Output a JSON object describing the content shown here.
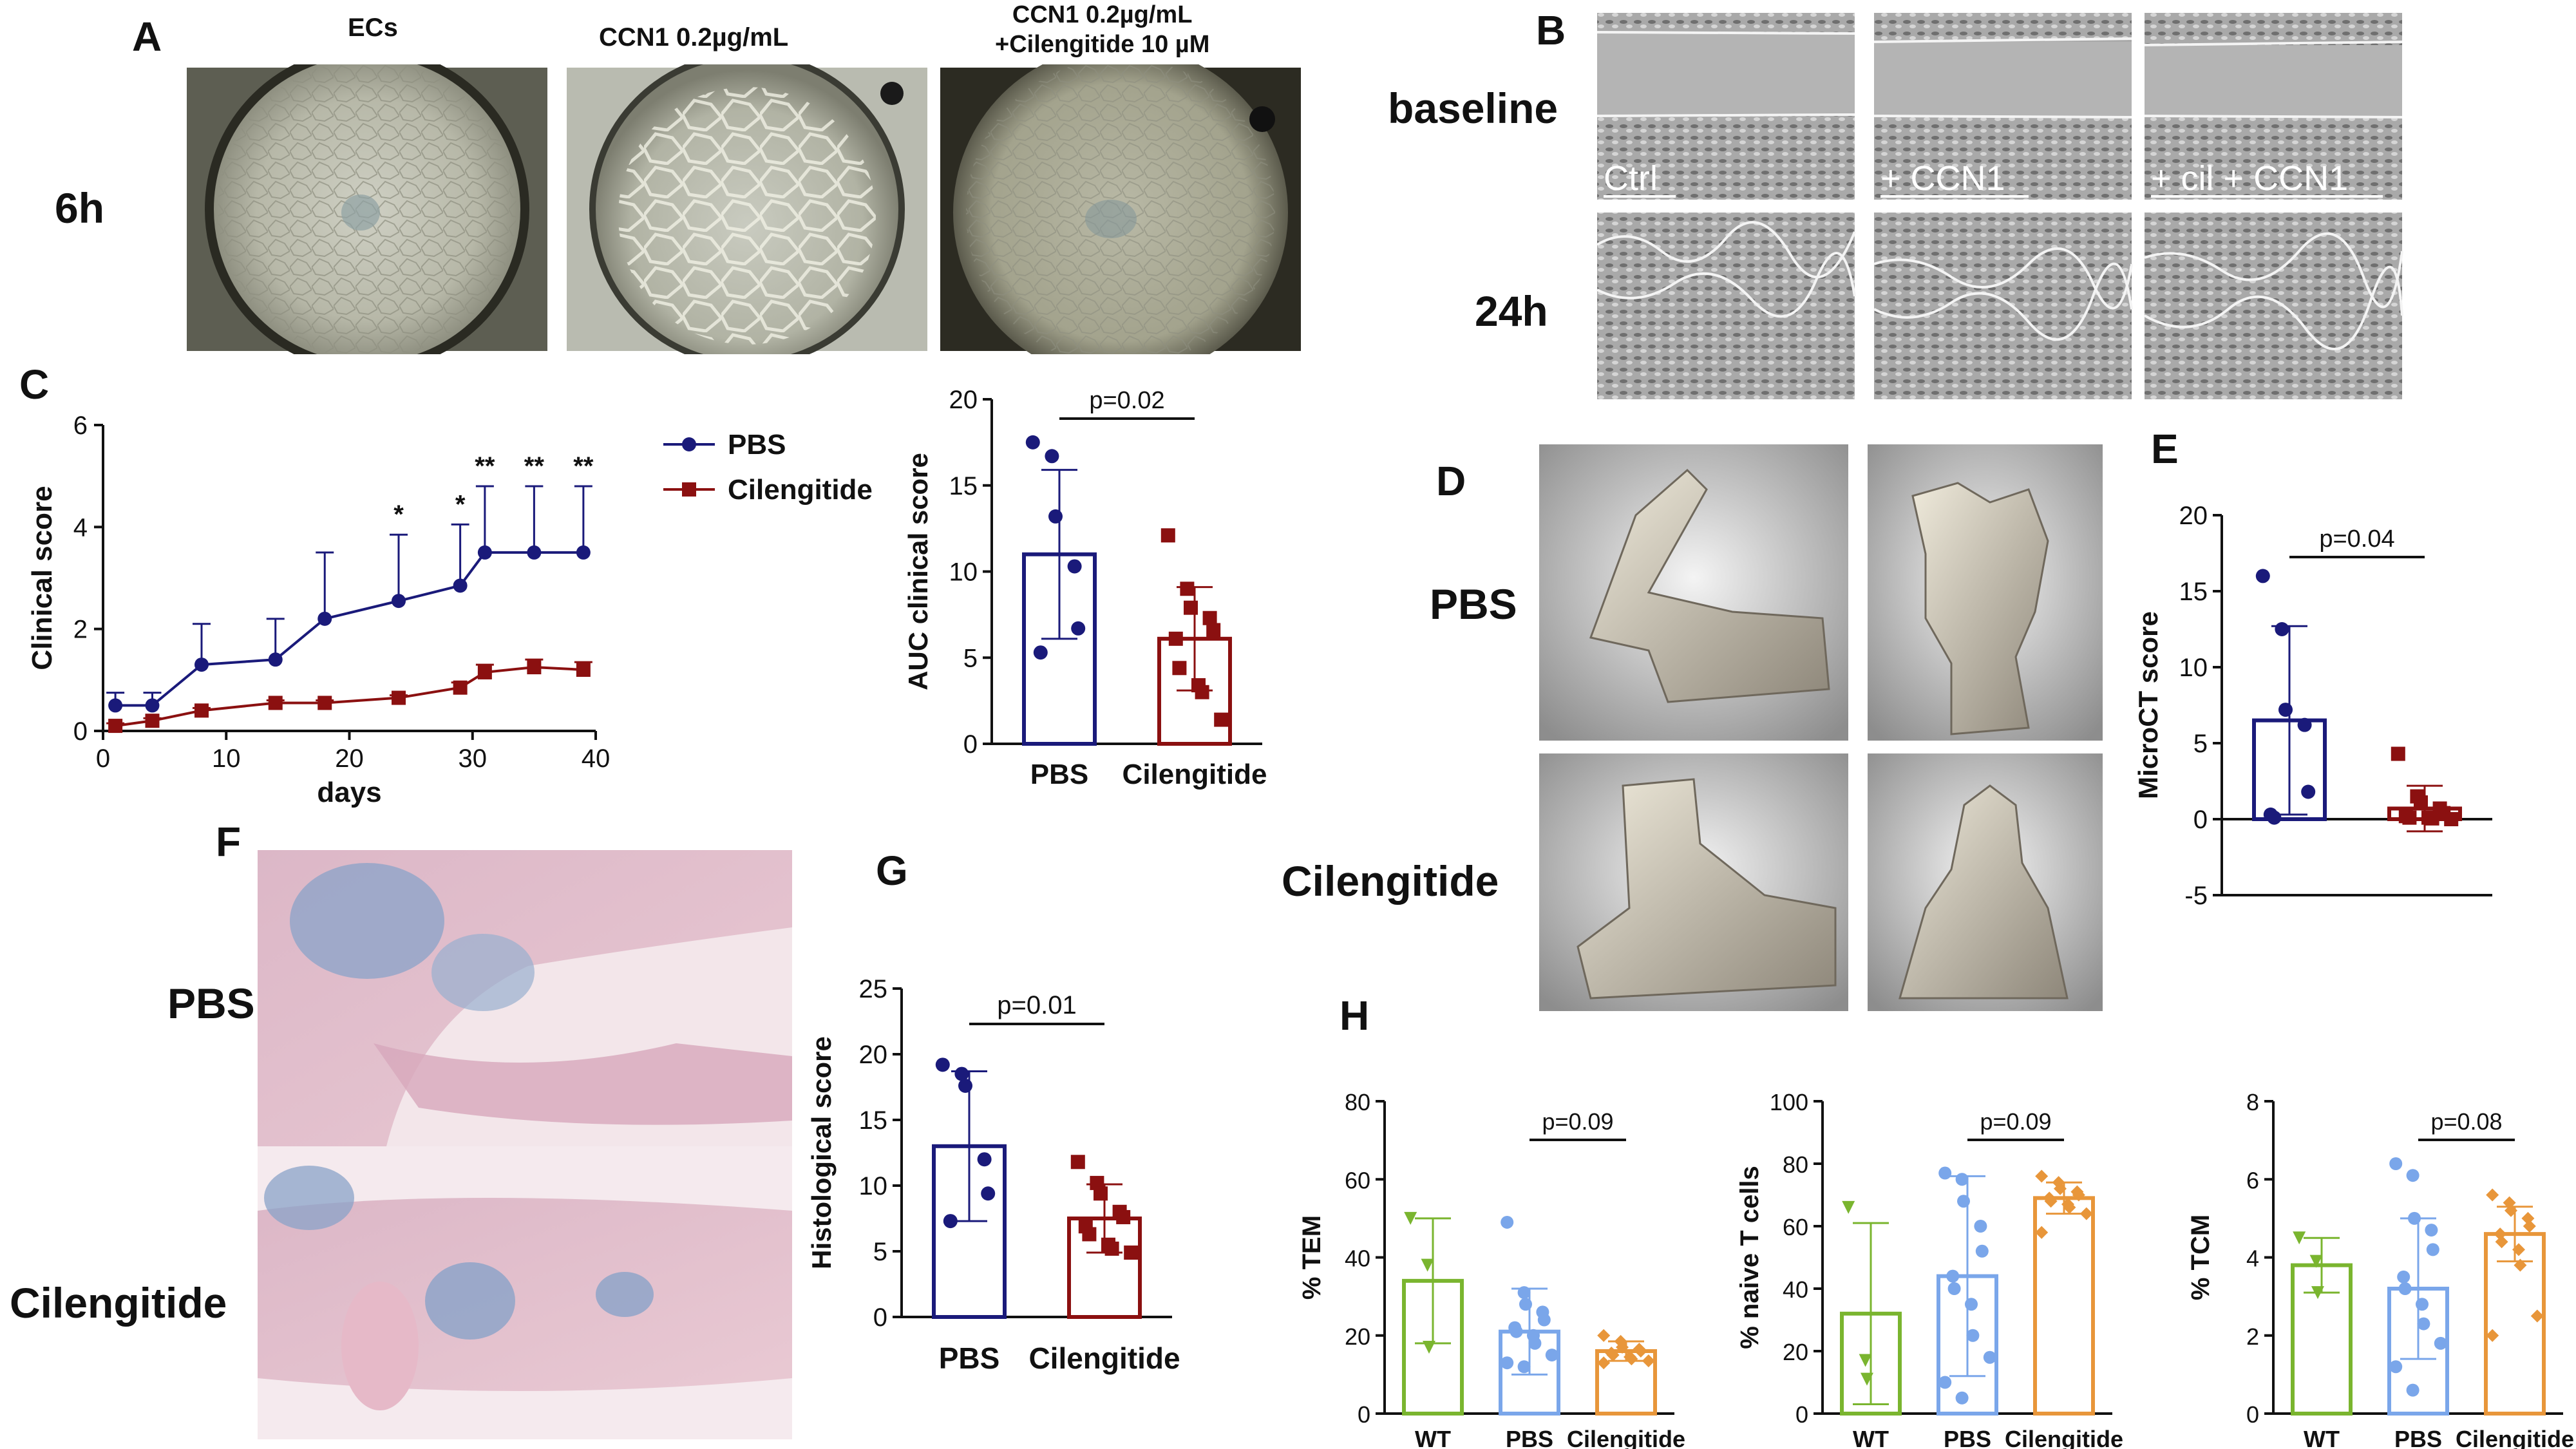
{
  "figure": {
    "panel_labels": {
      "A": "A",
      "B": "B",
      "C": "C",
      "D": "D",
      "E": "E",
      "F": "F",
      "G": "G",
      "H": "H"
    },
    "panel_a": {
      "col_titles": [
        "ECs",
        "CCN1 0.2µg/mL",
        "CCN1 0.2µg/mL\n+Cilengitide 10 µM"
      ],
      "row_label": "6h"
    },
    "panel_b": {
      "row_labels": [
        "baseline",
        "24h"
      ],
      "image_labels": [
        "Ctrl",
        "+ CCN1",
        "+ cil + CCN1"
      ]
    },
    "panel_d": {
      "row_labels": [
        "PBS",
        "Cilengitide"
      ]
    },
    "panel_f": {
      "row_labels": [
        "PBS",
        "Cilengitide"
      ]
    }
  },
  "chart_data": [
    {
      "id": "C-line",
      "type": "line",
      "xlabel": "days",
      "ylabel": "Clinical score",
      "xlim": [
        0,
        40
      ],
      "ylim": [
        0,
        6
      ],
      "xticks": [
        "0",
        "10",
        "20",
        "30",
        "40"
      ],
      "yticks": [
        "0",
        "2",
        "4",
        "6"
      ],
      "legend": [
        "PBS",
        "Cilengitide"
      ],
      "legend_position": "right",
      "series": [
        {
          "name": "PBS",
          "color": "#1a1a7a",
          "x": [
            1,
            4,
            8,
            14,
            18,
            24,
            29,
            31,
            35,
            39
          ],
          "y": [
            0.5,
            0.5,
            1.3,
            1.4,
            2.2,
            2.55,
            2.85,
            3.5,
            3.5,
            3.5
          ],
          "err": [
            0.25,
            0.25,
            0.8,
            0.8,
            1.3,
            1.3,
            1.2,
            1.3,
            1.3,
            1.3
          ]
        },
        {
          "name": "Cilengitide",
          "color": "#8b1010",
          "x": [
            1,
            4,
            8,
            14,
            18,
            24,
            29,
            31,
            35,
            39
          ],
          "y": [
            0.1,
            0.2,
            0.4,
            0.55,
            0.55,
            0.65,
            0.85,
            1.15,
            1.25,
            1.2
          ],
          "err": [
            0.05,
            0.05,
            0.05,
            0.05,
            0.05,
            0.05,
            0.1,
            0.15,
            0.15,
            0.15
          ]
        }
      ],
      "annotations": [
        {
          "x": 24,
          "text": "*"
        },
        {
          "x": 29,
          "text": "*"
        },
        {
          "x": 31,
          "text": "**"
        },
        {
          "x": 35,
          "text": "**"
        },
        {
          "x": 39,
          "text": "**"
        }
      ]
    },
    {
      "id": "C-bar",
      "type": "bar",
      "ylabel": "AUC clinical score",
      "ylim": [
        0,
        20
      ],
      "yticks": [
        "0",
        "5",
        "10",
        "15",
        "20"
      ],
      "categories": [
        "PBS",
        "Cilengitide"
      ],
      "colors": [
        "#1a1a7a",
        "#8b1010"
      ],
      "values": [
        11,
        6.1
      ],
      "err": [
        4.9,
        3.0
      ],
      "points": [
        [
          17.5,
          16.7,
          13.2,
          10.3,
          6.7,
          5.3
        ],
        [
          12.1,
          9.0,
          7.9,
          7.3,
          6.6,
          6.1,
          4.4,
          3.4,
          3.0,
          1.4
        ]
      ],
      "marker": [
        "circle",
        "square"
      ],
      "pvalue": "p=0.02"
    },
    {
      "id": "E-bar",
      "type": "bar",
      "ylabel": "MicroCT score",
      "ylim": [
        -5,
        20
      ],
      "yticks": [
        "-5",
        "0",
        "5",
        "10",
        "15",
        "20"
      ],
      "categories": [
        "",
        ""
      ],
      "colors": [
        "#1a1a7a",
        "#8b1010"
      ],
      "values": [
        6.5,
        0.7
      ],
      "err": [
        6.2,
        1.5
      ],
      "points": [
        [
          16,
          12.5,
          7.2,
          6.2,
          1.8,
          0.3,
          0.1
        ],
        [
          4.3,
          1.5,
          1.1,
          0.7,
          0.4,
          0.2,
          0.1,
          0.1,
          0.05,
          0
        ]
      ],
      "marker": [
        "circle",
        "square"
      ],
      "pvalue": "p=0.04"
    },
    {
      "id": "G-bar",
      "type": "bar",
      "ylabel": "Histological score",
      "ylim": [
        0,
        25
      ],
      "yticks": [
        "0",
        "5",
        "10",
        "15",
        "20",
        "25"
      ],
      "categories": [
        "PBS",
        "Cilengitide"
      ],
      "colors": [
        "#1a1a7a",
        "#8b1010"
      ],
      "values": [
        13,
        7.5
      ],
      "err": [
        5.7,
        2.6
      ],
      "points": [
        [
          19.2,
          18.5,
          17.6,
          12.0,
          9.4,
          7.3
        ],
        [
          11.8,
          10.2,
          9.4,
          8.0,
          7.6,
          6.9,
          6.3,
          5.5,
          5.2,
          4.9
        ]
      ],
      "marker": [
        "circle",
        "square"
      ],
      "pvalue": "p=0.01"
    },
    {
      "id": "H-TEM",
      "type": "bar",
      "ylabel": "% TEM",
      "ylim": [
        0,
        80
      ],
      "yticks": [
        "0",
        "20",
        "40",
        "60",
        "80"
      ],
      "categories": [
        "WT",
        "PBS",
        "Cilengitide"
      ],
      "colors": [
        "#7ab52f",
        "#7aa6ea",
        "#e8963a"
      ],
      "values": [
        34,
        21,
        16
      ],
      "err": [
        16,
        11,
        2.5
      ],
      "points": [
        [
          50,
          38,
          17
        ],
        [
          49,
          31,
          28,
          26,
          24,
          22,
          21,
          20,
          18,
          15,
          13,
          12
        ],
        [
          20,
          18.5,
          17,
          16.5,
          16,
          15.5,
          15,
          14.5,
          14,
          13.5,
          13
        ]
      ],
      "marker": [
        "triangle",
        "circle",
        "diamond"
      ],
      "pvalue": "p=0.09"
    },
    {
      "id": "H-naive",
      "type": "bar",
      "ylabel": "% naive T cells",
      "ylim": [
        0,
        100
      ],
      "yticks": [
        "0",
        "20",
        "40",
        "60",
        "80",
        "100"
      ],
      "categories": [
        "WT",
        "PBS",
        "Cilengitide"
      ],
      "colors": [
        "#7ab52f",
        "#7aa6ea",
        "#e8963a"
      ],
      "values": [
        32,
        44,
        69
      ],
      "err": [
        29,
        32,
        5
      ],
      "points": [
        [
          66,
          17,
          11
        ],
        [
          77,
          75,
          68,
          60,
          52,
          44,
          40,
          35,
          25,
          18,
          10,
          5
        ],
        [
          76,
          74,
          72,
          71,
          70,
          69,
          68,
          67,
          66,
          64,
          58
        ]
      ],
      "marker": [
        "triangle",
        "circle",
        "diamond"
      ],
      "pvalue": "p=0.09"
    },
    {
      "id": "H-TCM",
      "type": "bar",
      "ylabel": "% TCM",
      "ylim": [
        0,
        8
      ],
      "yticks": [
        "0",
        "2",
        "4",
        "6",
        "8"
      ],
      "categories": [
        "WT",
        "PBS",
        "Cilengitide"
      ],
      "colors": [
        "#7ab52f",
        "#7aa6ea",
        "#e8963a"
      ],
      "values": [
        3.8,
        3.2,
        4.6
      ],
      "err": [
        0.7,
        1.8,
        0.7
      ],
      "points": [
        [
          4.5,
          3.9,
          3.1
        ],
        [
          6.4,
          6.1,
          5.0,
          4.7,
          4.2,
          3.5,
          3.2,
          2.8,
          2.3,
          1.8,
          1.2,
          0.6
        ],
        [
          5.6,
          5.4,
          5.2,
          5.0,
          4.8,
          4.6,
          4.4,
          4.2,
          3.8,
          2.5,
          2.0
        ]
      ],
      "marker": [
        "triangle",
        "circle",
        "diamond"
      ],
      "pvalue": "p=0.08"
    }
  ]
}
